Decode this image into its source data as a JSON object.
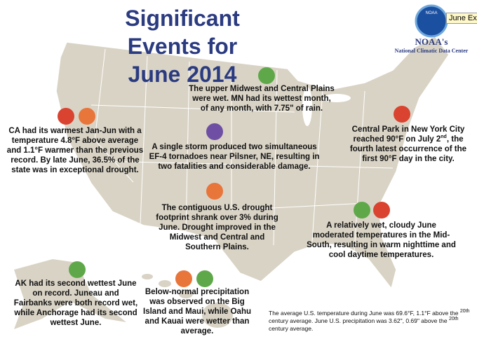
{
  "header": {
    "title_lines": [
      "Significant Events for",
      "June 2014"
    ],
    "logo": "NOAA",
    "org": "NOAA's",
    "org_sub": "National Climatic Data Center",
    "tab": "June Ex"
  },
  "events": [
    {
      "text": [
        "CA had its warmest Jan-Jun with a temperature 4.8°F above average and 1.1°F warmer than the previous record.  By late June, 36.5% of the state was in exceptional drought."
      ]
    },
    {
      "text": [
        "The upper Midwest and Central Plains were wet. MN had its wettest month, of any month, with 7.75\" of rain."
      ]
    },
    {
      "text": [
        "A single storm produced two simultaneous EF-4 tornadoes near Pilsner, NE, resulting in two fatalities and considerable damage."
      ]
    },
    {
      "text": [
        "Central Park in New York City reached 90°F on July 2",
        "nd",
        ", the fourth latest occurrence of the first 90°F day in the city."
      ]
    },
    {
      "text": [
        "The contiguous U.S. drought footprint shrank over 3% during June. Drought improved in the Midwest and Central and Southern Plains."
      ]
    },
    {
      "text": [
        "A relatively wet, cloudy June moderated temperatures in the Mid-South, resulting in warm nighttime and cool daytime temperatures."
      ]
    },
    {
      "text": [
        "AK had its second wettest June on record. Juneau and Fairbanks were both record wet, while Anchorage had its second wettest June."
      ]
    },
    {
      "text": [
        "Below-normal precipitation was observed on the Big Island and Maui, while Oahu and Kauai were wetter than average."
      ]
    }
  ],
  "footnote": [
    "The average U.S. temperature during June was 69.6°F, 1.1°F above the ",
    "20th",
    " century average. June U.S. precipitation was 3.62\", 0.69\" above the ",
    "20th",
    " century average."
  ]
}
